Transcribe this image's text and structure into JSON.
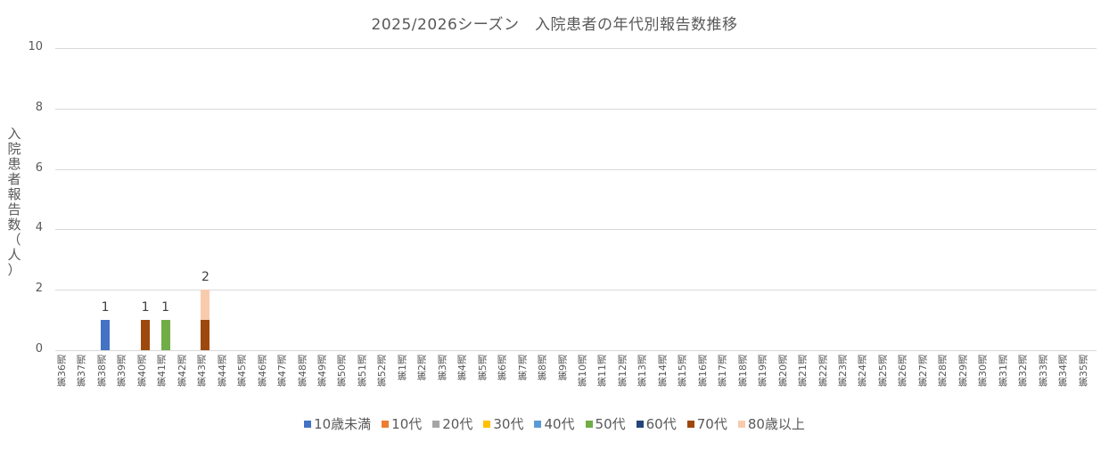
{
  "chart_data": {
    "type": "bar",
    "stacked": true,
    "title": "2025/2026シーズン　入院患者の年代別報告数推移",
    "xlabel": "",
    "ylabel": "入院患者報告数（人）",
    "ylim": [
      0,
      10
    ],
    "yticks": [
      0,
      2,
      4,
      6,
      8,
      10
    ],
    "grid": true,
    "legend_position": "bottom",
    "categories": [
      "第36週",
      "第37週",
      "第38週",
      "第39週",
      "第40週",
      "第41週",
      "第42週",
      "第43週",
      "第44週",
      "第45週",
      "第46週",
      "第47週",
      "第48週",
      "第49週",
      "第50週",
      "第51週",
      "第52週",
      "第1週",
      "第2週",
      "第3週",
      "第4週",
      "第5週",
      "第6週",
      "第7週",
      "第8週",
      "第9週",
      "第10週",
      "第11週",
      "第12週",
      "第13週",
      "第14週",
      "第15週",
      "第16週",
      "第17週",
      "第18週",
      "第19週",
      "第20週",
      "第21週",
      "第22週",
      "第23週",
      "第24週",
      "第25週",
      "第26週",
      "第27週",
      "第28週",
      "第29週",
      "第30週",
      "第31週",
      "第32週",
      "第33週",
      "第34週",
      "第35週"
    ],
    "series": [
      {
        "name": "10歳未満",
        "color": "#4472c4",
        "values": {
          "第38週": 1
        }
      },
      {
        "name": "10代",
        "color": "#ed7d31",
        "values": {}
      },
      {
        "name": "20代",
        "color": "#a5a5a5",
        "values": {}
      },
      {
        "name": "30代",
        "color": "#ffc000",
        "values": {}
      },
      {
        "name": "40代",
        "color": "#5b9bd5",
        "values": {}
      },
      {
        "name": "50代",
        "color": "#70ad47",
        "values": {
          "第41週": 1
        }
      },
      {
        "name": "60代",
        "color": "#264478",
        "values": {}
      },
      {
        "name": "70代",
        "color": "#9e480e",
        "values": {
          "第40週": 1,
          "第43週": 1
        }
      },
      {
        "name": "80歳以上",
        "color": "#f8cbad",
        "values": {
          "第43週": 1
        }
      }
    ],
    "totals_labels": {
      "第38週": "1",
      "第40週": "1",
      "第41週": "1",
      "第43週": "2"
    }
  }
}
